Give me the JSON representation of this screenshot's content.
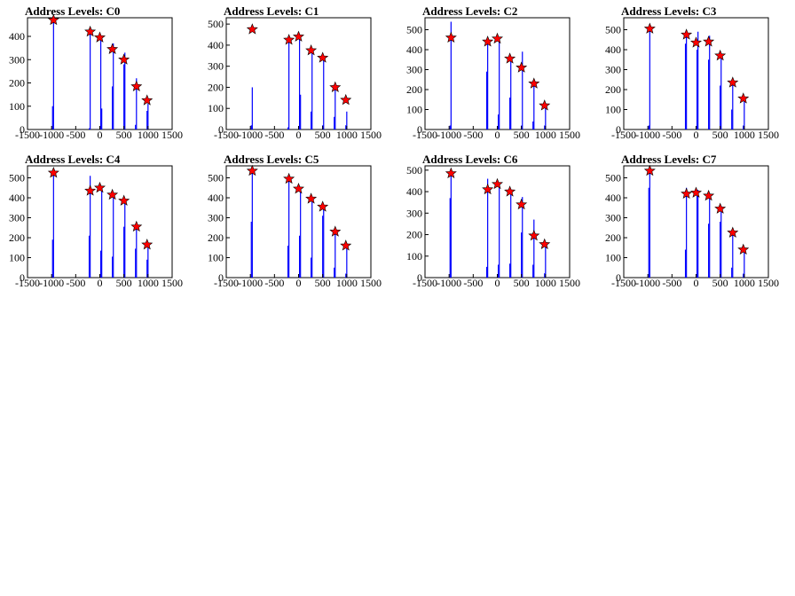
{
  "chart_data": [
    {
      "type": "bar",
      "title": "Address Levels: C0",
      "xlim": [
        -1500,
        1500
      ],
      "ylim": [
        0,
        480
      ],
      "xticks": [
        -1500,
        -1000,
        -500,
        0,
        500,
        1000,
        1500
      ],
      "yticks": [
        0,
        100,
        200,
        300,
        400
      ],
      "histogram": {
        "x": [
          -980,
          -960,
          -220,
          -200,
          20,
          40,
          260,
          280,
          500,
          520,
          740,
          760,
          980,
          1000
        ],
        "y": [
          100,
          470,
          5,
          420,
          390,
          90,
          185,
          370,
          280,
          330,
          20,
          220,
          80,
          110
        ]
      },
      "markers": {
        "x": [
          -960,
          -200,
          0,
          260,
          500,
          760,
          980
        ],
        "y": [
          470,
          420,
          395,
          345,
          300,
          185,
          125
        ]
      },
      "colors": {
        "histogram": "#0000ff",
        "marker": "#ff0000"
      }
    },
    {
      "type": "bar",
      "title": "Address Levels: C1",
      "xlim": [
        -1500,
        1500
      ],
      "ylim": [
        0,
        530
      ],
      "xticks": [
        -1500,
        -1000,
        -500,
        0,
        500,
        1000,
        1500
      ],
      "yticks": [
        0,
        100,
        200,
        300,
        400,
        500
      ],
      "histogram": {
        "x": [
          -980,
          -960,
          -220,
          -200,
          20,
          40,
          260,
          280,
          500,
          520,
          740,
          760,
          980,
          1000
        ],
        "y": [
          20,
          200,
          10,
          430,
          440,
          165,
          85,
          385,
          20,
          345,
          60,
          215,
          20,
          85
        ]
      },
      "markers": {
        "x": [
          -960,
          -200,
          0,
          260,
          500,
          760,
          980
        ],
        "y": [
          475,
          425,
          440,
          375,
          340,
          200,
          140
        ]
      },
      "colors": {
        "histogram": "#0000ff",
        "marker": "#ff0000"
      }
    },
    {
      "type": "bar",
      "title": "Address Levels: C2",
      "xlim": [
        -1500,
        1500
      ],
      "ylim": [
        0,
        560
      ],
      "xticks": [
        -1500,
        -1000,
        -500,
        0,
        500,
        1000,
        1500
      ],
      "yticks": [
        0,
        100,
        200,
        300,
        400,
        500
      ],
      "histogram": {
        "x": [
          -980,
          -960,
          -220,
          -200,
          20,
          40,
          260,
          280,
          500,
          520,
          740,
          760,
          980,
          1000
        ],
        "y": [
          20,
          540,
          290,
          460,
          75,
          460,
          160,
          360,
          20,
          390,
          40,
          240,
          20,
          115
        ]
      },
      "markers": {
        "x": [
          -960,
          -200,
          0,
          260,
          500,
          760,
          980
        ],
        "y": [
          460,
          440,
          455,
          355,
          310,
          230,
          120
        ]
      },
      "colors": {
        "histogram": "#0000ff",
        "marker": "#ff0000"
      }
    },
    {
      "type": "bar",
      "title": "Address Levels: C3",
      "xlim": [
        -1500,
        1500
      ],
      "ylim": [
        0,
        560
      ],
      "xticks": [
        -1500,
        -1000,
        -500,
        0,
        500,
        1000,
        1500
      ],
      "yticks": [
        0,
        100,
        200,
        300,
        400,
        500
      ],
      "histogram": {
        "x": [
          -980,
          -960,
          -220,
          -200,
          20,
          40,
          260,
          280,
          500,
          520,
          740,
          760,
          980,
          1000
        ],
        "y": [
          20,
          520,
          430,
          480,
          400,
          490,
          350,
          470,
          220,
          380,
          100,
          250,
          20,
          160
        ]
      },
      "markers": {
        "x": [
          -960,
          -200,
          0,
          260,
          500,
          760,
          980
        ],
        "y": [
          505,
          475,
          435,
          440,
          370,
          235,
          155
        ]
      },
      "colors": {
        "histogram": "#0000ff",
        "marker": "#ff0000"
      }
    },
    {
      "type": "bar",
      "title": "Address Levels: C4",
      "xlim": [
        -1500,
        1500
      ],
      "ylim": [
        0,
        560
      ],
      "xticks": [
        -1500,
        -1000,
        -500,
        0,
        500,
        1000,
        1500
      ],
      "yticks": [
        0,
        100,
        200,
        300,
        400,
        500
      ],
      "histogram": {
        "x": [
          -980,
          -960,
          -220,
          -200,
          20,
          40,
          260,
          280,
          500,
          520,
          740,
          760,
          980,
          1000
        ],
        "y": [
          190,
          540,
          210,
          510,
          135,
          460,
          105,
          415,
          255,
          380,
          145,
          255,
          90,
          165
        ]
      },
      "markers": {
        "x": [
          -960,
          -200,
          0,
          260,
          500,
          760,
          980
        ],
        "y": [
          525,
          435,
          450,
          415,
          385,
          255,
          165
        ]
      },
      "colors": {
        "histogram": "#0000ff",
        "marker": "#ff0000"
      }
    },
    {
      "type": "bar",
      "title": "Address Levels: C5",
      "xlim": [
        -1500,
        1500
      ],
      "ylim": [
        0,
        560
      ],
      "xticks": [
        -1500,
        -1000,
        -500,
        0,
        500,
        1000,
        1500
      ],
      "yticks": [
        0,
        100,
        200,
        300,
        400,
        500
      ],
      "histogram": {
        "x": [
          -980,
          -960,
          -220,
          -200,
          20,
          40,
          260,
          280,
          500,
          520,
          740,
          760,
          980,
          1000
        ],
        "y": [
          280,
          540,
          160,
          500,
          210,
          450,
          100,
          400,
          310,
          360,
          50,
          240,
          20,
          165
        ]
      },
      "markers": {
        "x": [
          -960,
          -200,
          0,
          260,
          500,
          760,
          980
        ],
        "y": [
          535,
          495,
          445,
          395,
          355,
          230,
          160
        ]
      },
      "colors": {
        "histogram": "#0000ff",
        "marker": "#ff0000"
      }
    },
    {
      "type": "bar",
      "title": "Address Levels: C6",
      "xlim": [
        -1500,
        1500
      ],
      "ylim": [
        0,
        520
      ],
      "xticks": [
        -1500,
        -1000,
        -500,
        0,
        500,
        1000,
        1500
      ],
      "yticks": [
        0,
        100,
        200,
        300,
        400,
        500
      ],
      "histogram": {
        "x": [
          -980,
          -960,
          -220,
          -200,
          20,
          40,
          260,
          280,
          500,
          520,
          740,
          760,
          980,
          1000
        ],
        "y": [
          370,
          490,
          50,
          460,
          60,
          440,
          65,
          410,
          210,
          375,
          60,
          270,
          20,
          160
        ]
      },
      "markers": {
        "x": [
          -960,
          -200,
          0,
          260,
          500,
          760,
          980
        ],
        "y": [
          485,
          410,
          435,
          400,
          340,
          195,
          155
        ]
      },
      "colors": {
        "histogram": "#0000ff",
        "marker": "#ff0000"
      }
    },
    {
      "type": "bar",
      "title": "Address Levels: C7",
      "xlim": [
        -1500,
        1500
      ],
      "ylim": [
        0,
        560
      ],
      "xticks": [
        -1500,
        -1000,
        -500,
        0,
        500,
        1000,
        1500
      ],
      "yticks": [
        0,
        100,
        200,
        300,
        400,
        500
      ],
      "histogram": {
        "x": [
          -980,
          -960,
          -220,
          -200,
          20,
          40,
          260,
          280,
          500,
          520,
          740,
          760,
          980,
          1000
        ],
        "y": [
          450,
          555,
          140,
          450,
          410,
          440,
          270,
          420,
          280,
          360,
          50,
          240,
          20,
          150
        ]
      },
      "markers": {
        "x": [
          -960,
          -200,
          0,
          260,
          500,
          760,
          980
        ],
        "y": [
          535,
          420,
          425,
          410,
          345,
          225,
          140
        ]
      },
      "colors": {
        "histogram": "#0000ff",
        "marker": "#ff0000"
      }
    }
  ]
}
